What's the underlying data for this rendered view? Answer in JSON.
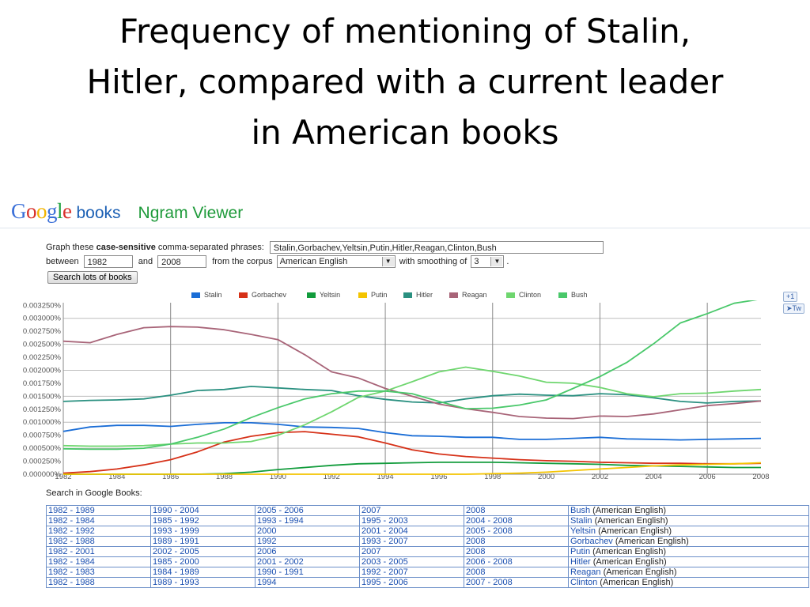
{
  "slide_title": [
    "Frequency of mentioning of Stalin,",
    "Hitler, compared with a current leader",
    "in American books"
  ],
  "header": {
    "logo_text": "Google",
    "books": "books",
    "app_name": "Ngram Viewer"
  },
  "form": {
    "graph_prefix": "Graph these ",
    "graph_bold": "case-sensitive",
    "graph_suffix": " comma-separated phrases:",
    "phrases_value": "Stalin,Gorbachev,Yeltsin,Putin,Hitler,Reagan,Clinton,Bush",
    "between_label": "between",
    "start_year": "1982",
    "and_label": "and",
    "end_year": "2008",
    "corpus_label": "from the corpus",
    "corpus_value": "American English",
    "smoothing_label": "with smoothing of",
    "smoothing_value": "3",
    "period": ".",
    "search_button": "Search lots of books"
  },
  "share": {
    "plus_one": "+1",
    "tweet": "Tw"
  },
  "colors": {
    "Stalin": "#1a6dd6",
    "Gorbachev": "#d63118",
    "Yeltsin": "#129c3c",
    "Putin": "#f4c400",
    "Hitler": "#2a9080",
    "Reagan": "#a86478",
    "Clinton": "#6fd66f",
    "Bush": "#49c86a"
  },
  "chart_data": {
    "type": "line",
    "x": [
      1982,
      1983,
      1984,
      1985,
      1986,
      1987,
      1988,
      1989,
      1990,
      1991,
      1992,
      1993,
      1994,
      1995,
      1996,
      1997,
      1998,
      1999,
      2000,
      2001,
      2002,
      2003,
      2004,
      2005,
      2006,
      2007,
      2008
    ],
    "x_ticks": [
      "1982",
      "1984",
      "1986",
      "1988",
      "1990",
      "1992",
      "1994",
      "1996",
      "1998",
      "2000",
      "2002",
      "2004",
      "2006",
      "2008"
    ],
    "y_ticks": [
      "0.000000%",
      "0.000250%",
      "0.000500%",
      "0.000750%",
      "0.001000%",
      "0.001250%",
      "0.001500%",
      "0.001750%",
      "0.002000%",
      "0.002250%",
      "0.002500%",
      "0.002750%",
      "0.003000%",
      "0.003250%"
    ],
    "ylim": [
      0,
      0.0033
    ],
    "grid": "vertical lines at 1986, 1990, 1994, 1998, 2002, 2006; horizontal lines at 0.0005%, 0.0010%, 0.0015%, 0.0020%, 0.0025%, 0.0030%",
    "legend_position": "top",
    "series": [
      {
        "name": "Stalin",
        "values": [
          0.000825,
          0.00091,
          0.00094,
          0.00094,
          0.00092,
          0.00096,
          0.00099,
          0.00099,
          0.00096,
          0.00091,
          0.0009,
          0.00088,
          0.0008,
          0.00074,
          0.00073,
          0.00071,
          0.00071,
          0.00067,
          0.00067,
          0.00069,
          0.00071,
          0.00068,
          0.00067,
          0.00066,
          0.00067,
          0.00068,
          0.00069
        ]
      },
      {
        "name": "Gorbachev",
        "values": [
          2e-05,
          5e-05,
          0.0001,
          0.00018,
          0.00028,
          0.00043,
          0.00062,
          0.00073,
          0.0008,
          0.00082,
          0.00077,
          0.00072,
          0.0006,
          0.00047,
          0.00039,
          0.00034,
          0.00031,
          0.00028,
          0.00026,
          0.00025,
          0.00023,
          0.00022,
          0.00021,
          0.00021,
          0.0002,
          0.0002,
          0.00021
        ]
      },
      {
        "name": "Yeltsin",
        "values": [
          0,
          0,
          0,
          0,
          0,
          0,
          1e-05,
          4e-05,
          9e-05,
          0.00013,
          0.00017,
          0.0002,
          0.00021,
          0.00022,
          0.00023,
          0.00023,
          0.00023,
          0.00022,
          0.00021,
          0.0002,
          0.00019,
          0.00017,
          0.00016,
          0.00015,
          0.00014,
          0.00013,
          0.00013
        ]
      },
      {
        "name": "Putin",
        "values": [
          0,
          0,
          0,
          0,
          0,
          0,
          0,
          0,
          0,
          0,
          0,
          0,
          0,
          0,
          0,
          0,
          1e-05,
          2e-05,
          4e-05,
          7e-05,
          0.0001,
          0.00013,
          0.00016,
          0.00018,
          0.00019,
          0.0002,
          0.00022
        ]
      },
      {
        "name": "Hitler",
        "values": [
          0.0014,
          0.00142,
          0.00143,
          0.00145,
          0.00152,
          0.00161,
          0.00163,
          0.00169,
          0.00166,
          0.00163,
          0.00161,
          0.00151,
          0.00144,
          0.00139,
          0.00137,
          0.00145,
          0.00151,
          0.00154,
          0.00152,
          0.00151,
          0.00155,
          0.00153,
          0.00147,
          0.0014,
          0.00137,
          0.0014,
          0.00141
        ]
      },
      {
        "name": "Reagan",
        "values": [
          0.00256,
          0.00253,
          0.00269,
          0.00282,
          0.00284,
          0.00283,
          0.00278,
          0.00269,
          0.00259,
          0.0023,
          0.00197,
          0.00185,
          0.00165,
          0.0015,
          0.00135,
          0.00126,
          0.00119,
          0.00111,
          0.00108,
          0.00107,
          0.00112,
          0.00111,
          0.00116,
          0.00124,
          0.00132,
          0.00136,
          0.00141
        ]
      },
      {
        "name": "Clinton",
        "values": [
          0.00055,
          0.00054,
          0.00054,
          0.00055,
          0.00058,
          0.0006,
          0.0006,
          0.00063,
          0.00075,
          0.00095,
          0.0012,
          0.00148,
          0.0016,
          0.00178,
          0.00197,
          0.00206,
          0.00198,
          0.00189,
          0.00177,
          0.00175,
          0.00167,
          0.00155,
          0.00149,
          0.00155,
          0.00156,
          0.0016,
          0.00163
        ]
      },
      {
        "name": "Bush",
        "values": [
          0.00049,
          0.00048,
          0.00048,
          0.0005,
          0.00058,
          0.00071,
          0.00087,
          0.00109,
          0.00128,
          0.00145,
          0.00155,
          0.0016,
          0.0016,
          0.00155,
          0.0014,
          0.00126,
          0.00127,
          0.00133,
          0.00143,
          0.00165,
          0.00188,
          0.00215,
          0.00251,
          0.00291,
          0.00309,
          0.00329,
          0.00337
        ]
      }
    ]
  },
  "search_label": "Search in Google Books:",
  "results": [
    {
      "cols": [
        "1982 - 1989",
        "1990 - 2004",
        "2005 - 2006",
        "2007",
        "2008"
      ],
      "term": "Bush",
      "corpus": "(American English)"
    },
    {
      "cols": [
        "1982 - 1984",
        "1985 - 1992",
        "1993 - 1994",
        "1995 - 2003",
        "2004 - 2008"
      ],
      "term": "Stalin",
      "corpus": "(American English)"
    },
    {
      "cols": [
        "1982 - 1992",
        "1993 - 1999",
        "2000",
        "2001 - 2004",
        "2005 - 2008"
      ],
      "term": "Yeltsin",
      "corpus": "(American English)"
    },
    {
      "cols": [
        "1982 - 1988",
        "1989 - 1991",
        "1992",
        "1993 - 2007",
        "2008"
      ],
      "term": "Gorbachev",
      "corpus": "(American English)"
    },
    {
      "cols": [
        "1982 - 2001",
        "2002 - 2005",
        "2006",
        "2007",
        "2008"
      ],
      "term": "Putin",
      "corpus": "(American English)"
    },
    {
      "cols": [
        "1982 - 1984",
        "1985 - 2000",
        "2001 - 2002",
        "2003 - 2005",
        "2006 - 2008"
      ],
      "term": "Hitler",
      "corpus": "(American English)"
    },
    {
      "cols": [
        "1982 - 1983",
        "1984 - 1989",
        "1990 - 1991",
        "1992 - 2007",
        "2008"
      ],
      "term": "Reagan",
      "corpus": "(American English)"
    },
    {
      "cols": [
        "1982 - 1988",
        "1989 - 1993",
        "1994",
        "1995 - 2006",
        "2007 - 2008"
      ],
      "term": "Clinton",
      "corpus": "(American English)"
    }
  ]
}
